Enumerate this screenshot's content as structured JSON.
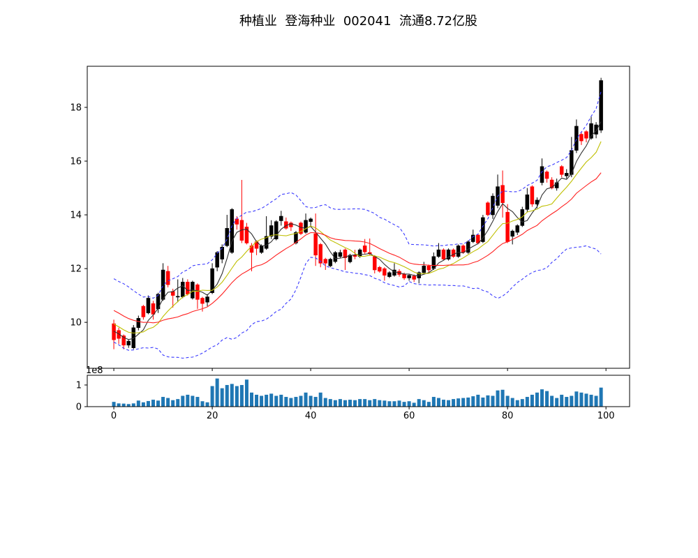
{
  "chart_data": {
    "type": "candlestick",
    "title": "种植业  登海种业  002041  流通8.72亿股",
    "stock": {
      "sector": "种植业",
      "name": "登海种业",
      "code": "002041",
      "float_shares": "8.72亿股"
    },
    "panels": [
      "price-candlestick",
      "volume-bars"
    ],
    "series": {
      "open": [
        9.95,
        9.7,
        9.5,
        9.15,
        9.05,
        9.8,
        10.6,
        10.35,
        10.7,
        10.5,
        10.85,
        11.9,
        11.15,
        10.95,
        10.95,
        11.5,
        10.9,
        11.4,
        10.9,
        10.75,
        11.1,
        12.05,
        12.35,
        12.85,
        12.6,
        13.85,
        13.8,
        13.55,
        12.85,
        13.0,
        12.6,
        12.75,
        13.2,
        13.1,
        13.78,
        13.75,
        13.7,
        12.95,
        13.7,
        13.35,
        13.75,
        13.3,
        12.9,
        12.35,
        12.1,
        12.26,
        12.45,
        12.7,
        12.25,
        12.5,
        12.45,
        12.85,
        12.6,
        12.45,
        12.05,
        12.0,
        11.7,
        11.75,
        11.9,
        11.8,
        11.65,
        11.72,
        11.65,
        11.85,
        12.1,
        12.0,
        12.45,
        12.7,
        12.35,
        12.7,
        12.45,
        12.85,
        12.6,
        13.0,
        13.25,
        13.0,
        14.45,
        14.0,
        14.35,
        15.1,
        14.1,
        13.2,
        13.35,
        13.6,
        14.2,
        15.05,
        14.4,
        15.2,
        15.6,
        15.3,
        15.0,
        15.8,
        15.45,
        15.5,
        16.4,
        17.0,
        17.1,
        16.85,
        17.0,
        17.15
      ],
      "high": [
        10.1,
        9.8,
        9.55,
        9.35,
        9.9,
        10.25,
        10.65,
        11.0,
        10.8,
        11.1,
        12.2,
        12.1,
        11.25,
        11.6,
        11.65,
        11.6,
        11.55,
        11.45,
        10.95,
        11.05,
        12.2,
        12.65,
        12.9,
        14.0,
        14.25,
        13.95,
        15.3,
        13.7,
        12.95,
        13.05,
        12.9,
        13.95,
        13.8,
        13.8,
        14.15,
        13.9,
        13.75,
        13.4,
        13.75,
        14.05,
        13.9,
        14.05,
        12.95,
        12.4,
        12.4,
        12.65,
        12.7,
        12.75,
        12.55,
        12.7,
        12.75,
        13.1,
        13.12,
        12.5,
        12.1,
        12.05,
        11.9,
        12.2,
        11.98,
        11.85,
        11.8,
        11.78,
        11.9,
        12.25,
        12.15,
        12.6,
        12.95,
        12.75,
        12.75,
        12.75,
        12.9,
        12.9,
        13.05,
        13.45,
        13.3,
        14.0,
        14.5,
        14.8,
        15.5,
        15.65,
        14.4,
        13.45,
        13.65,
        14.3,
        15.0,
        15.1,
        14.65,
        16.1,
        15.65,
        15.4,
        15.35,
        15.85,
        15.7,
        16.9,
        17.55,
        17.1,
        17.15,
        17.65,
        17.45,
        19.1
      ],
      "low": [
        9.0,
        9.2,
        9.0,
        9.05,
        9.0,
        9.7,
        10.1,
        10.3,
        10.1,
        10.35,
        10.8,
        11.3,
        10.55,
        10.75,
        10.9,
        11.0,
        10.85,
        10.5,
        10.4,
        10.6,
        11.05,
        11.9,
        12.2,
        12.8,
        12.55,
        13.45,
        12.95,
        12.9,
        11.9,
        12.5,
        12.55,
        12.7,
        13.1,
        13.05,
        13.6,
        13.45,
        13.4,
        12.9,
        13.25,
        13.3,
        13.55,
        12.1,
        12.05,
        11.95,
        12.05,
        12.2,
        12.4,
        11.95,
        12.2,
        12.35,
        12.4,
        12.55,
        12.5,
        11.82,
        11.85,
        11.55,
        11.65,
        11.7,
        11.7,
        11.58,
        11.55,
        11.5,
        11.45,
        11.8,
        11.85,
        11.95,
        12.4,
        12.3,
        12.3,
        12.4,
        12.4,
        12.55,
        12.55,
        12.95,
        12.9,
        12.95,
        13.95,
        13.85,
        14.25,
        13.9,
        12.95,
        12.9,
        13.25,
        13.55,
        14.1,
        14.3,
        14.25,
        15.1,
        15.2,
        14.95,
        14.9,
        15.4,
        15.35,
        15.4,
        16.3,
        16.6,
        16.7,
        16.8,
        16.85,
        17.05
      ],
      "close": [
        9.35,
        9.4,
        9.15,
        9.3,
        9.8,
        10.15,
        10.2,
        10.9,
        10.3,
        11.05,
        11.95,
        11.4,
        11.0,
        10.97,
        11.5,
        11.05,
        11.5,
        10.85,
        10.7,
        10.95,
        12.0,
        12.6,
        12.8,
        13.5,
        14.2,
        13.65,
        13.05,
        12.95,
        12.6,
        12.75,
        12.85,
        13.2,
        13.6,
        13.75,
        13.95,
        13.5,
        13.55,
        13.35,
        13.3,
        13.8,
        13.85,
        12.5,
        12.2,
        12.2,
        12.35,
        12.6,
        12.6,
        12.4,
        12.5,
        12.45,
        12.7,
        12.62,
        12.55,
        11.95,
        11.9,
        11.75,
        11.85,
        11.95,
        11.78,
        11.65,
        11.75,
        11.6,
        11.85,
        12.1,
        11.95,
        12.45,
        12.7,
        12.35,
        12.7,
        12.45,
        12.85,
        12.6,
        13.0,
        13.25,
        12.95,
        13.9,
        14.0,
        14.7,
        15.05,
        14.45,
        13.0,
        13.4,
        13.6,
        14.2,
        14.75,
        14.4,
        14.55,
        15.8,
        15.35,
        15.0,
        15.2,
        15.5,
        15.55,
        16.4,
        17.3,
        16.75,
        16.85,
        17.4,
        17.35,
        19.0
      ],
      "volume_e8": [
        0.22,
        0.15,
        0.14,
        0.12,
        0.15,
        0.28,
        0.2,
        0.26,
        0.32,
        0.28,
        0.45,
        0.4,
        0.3,
        0.35,
        0.5,
        0.55,
        0.5,
        0.45,
        0.25,
        0.2,
        0.95,
        1.3,
        0.85,
        1.0,
        1.05,
        0.95,
        1.0,
        1.25,
        0.65,
        0.55,
        0.5,
        0.55,
        0.6,
        0.5,
        0.55,
        0.45,
        0.4,
        0.45,
        0.5,
        0.65,
        0.5,
        0.45,
        0.65,
        0.4,
        0.35,
        0.3,
        0.35,
        0.3,
        0.32,
        0.3,
        0.35,
        0.35,
        0.3,
        0.35,
        0.3,
        0.28,
        0.25,
        0.25,
        0.28,
        0.22,
        0.25,
        0.18,
        0.35,
        0.3,
        0.22,
        0.45,
        0.4,
        0.32,
        0.3,
        0.35,
        0.38,
        0.4,
        0.42,
        0.48,
        0.55,
        0.42,
        0.52,
        0.5,
        0.75,
        0.78,
        0.5,
        0.4,
        0.3,
        0.35,
        0.45,
        0.55,
        0.65,
        0.8,
        0.72,
        0.5,
        0.4,
        0.55,
        0.45,
        0.5,
        0.7,
        0.65,
        0.6,
        0.55,
        0.5,
        0.88
      ]
    },
    "overlays": {
      "ma_short": {
        "window": 5,
        "color": "#303030",
        "style": "solid"
      },
      "ma_mid": {
        "window": 10,
        "color": "#bfbf00",
        "style": "solid"
      },
      "ma_long": {
        "window": 20,
        "color": "#ff2020",
        "style": "solid"
      },
      "bollinger": {
        "window": 20,
        "mult": 2,
        "color": "#3a3aff",
        "style": "dashed"
      }
    },
    "axes": {
      "price": {
        "ylim": [
          8.29,
          19.53
        ],
        "yticks": [
          10,
          12,
          14,
          16,
          18
        ]
      },
      "volume": {
        "ylim_e8": [
          0,
          1.45
        ],
        "yticks": [
          0,
          1
        ],
        "offset_label": "1e8"
      },
      "x": {
        "xlim": [
          -5.4,
          104.8
        ],
        "xticks": [
          0,
          20,
          40,
          60,
          80,
          100
        ]
      }
    },
    "colors": {
      "up": "#000000",
      "down": "#ff0000",
      "volume_bar": "#1f77b4",
      "spine": "#000000",
      "background": "#ffffff"
    }
  }
}
